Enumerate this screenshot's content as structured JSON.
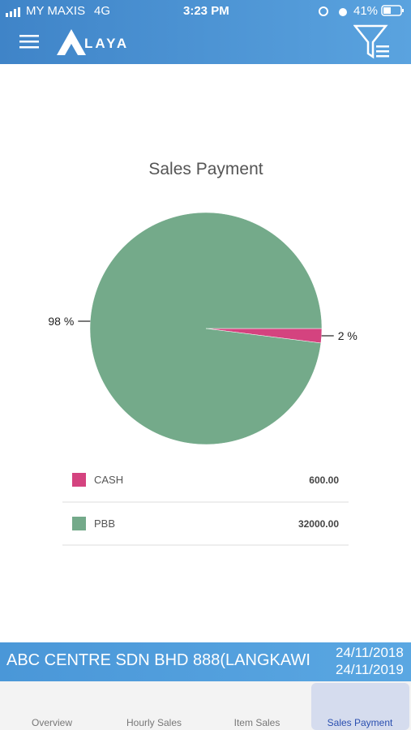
{
  "status_bar": {
    "carrier": "MY MAXIS",
    "network": "4G",
    "time": "3:23 PM",
    "battery": "41%"
  },
  "header": {
    "logo_text": "LAYA"
  },
  "chart_data": {
    "type": "pie",
    "title": "Sales Payment",
    "categories": [
      "CASH",
      "PBB"
    ],
    "values": [
      2,
      98
    ],
    "value_labels": [
      "2 %",
      "98 %"
    ],
    "colors": [
      "#d4437f",
      "#74aa8a"
    ]
  },
  "legend_amounts": [
    "600.00",
    "32000.00"
  ],
  "footer": {
    "outlet": "ABC CENTRE SDN BHD 888(LANGKAWI",
    "date_from": "24/11/2018",
    "date_to": "24/11/2019"
  },
  "tabs": [
    "Overview",
    "Hourly Sales",
    "Item Sales",
    "Sales Payment"
  ]
}
